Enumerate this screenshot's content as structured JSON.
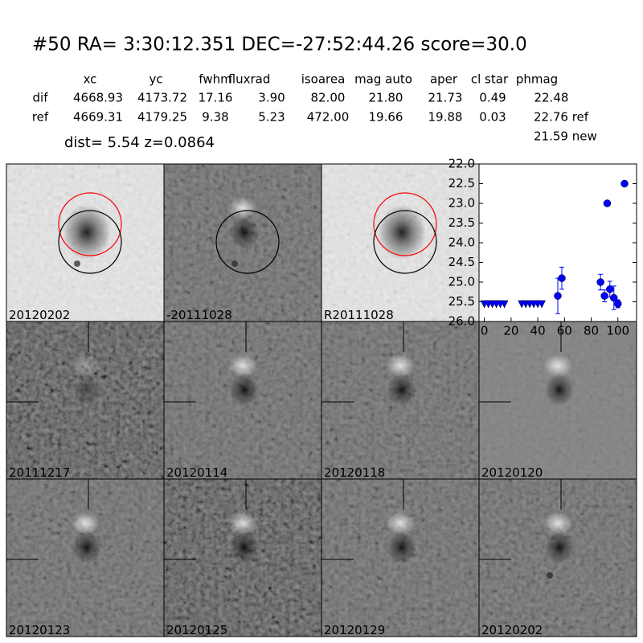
{
  "header": {
    "title": "#50   RA= 3:30:12.351 DEC=-27:52:44.26       score=30.0",
    "dist_line": "dist=  5.54      z=0.0864"
  },
  "table": {
    "columns": [
      "xc",
      "yc",
      "fwhm",
      "fluxrad",
      "isoarea",
      "mag auto",
      "aper",
      "cl star",
      "phmag"
    ],
    "rows": [
      [
        "dif",
        "4668.93",
        "4173.72",
        "17.16",
        "3.90",
        "82.00",
        "21.80",
        "21.73",
        "0.49",
        "22.48"
      ],
      [
        "ref",
        "4669.31",
        "4179.25",
        "9.38",
        "5.23",
        "472.00",
        "19.66",
        "19.88",
        "0.03",
        "22.76 ref"
      ]
    ],
    "extra": "21.59 new"
  },
  "panels": [
    {
      "label": "20120202",
      "circles": [
        "#ff0000",
        "#000000"
      ]
    },
    {
      "label": "-20111028",
      "circles": [
        "#000000"
      ]
    },
    {
      "label": "R20111028",
      "circles": [
        "#ff0000",
        "#000000"
      ]
    },
    {
      "label": "20111217"
    },
    {
      "label": "20120114"
    },
    {
      "label": "20120118"
    },
    {
      "label": "20120120"
    },
    {
      "label": "20120123"
    },
    {
      "label": "20120125"
    },
    {
      "label": "20120129"
    },
    {
      "label": "20120202",
      "label_color": "#ff0000"
    }
  ],
  "chart_data": {
    "type": "scatter",
    "xlim": [
      -4,
      114
    ],
    "ylim": [
      26.0,
      22.0
    ],
    "xticks": [
      0,
      20,
      40,
      60,
      80,
      100
    ],
    "yticks": [
      {
        "value": 22,
        "label": "22.0"
      },
      22.5,
      {
        "value": 23,
        "label": "23.0"
      },
      23.5,
      {
        "value": 24,
        "label": "24.0"
      },
      24.5,
      {
        "value": 25,
        "label": "25.0"
      },
      25.5,
      {
        "value": 26,
        "label": "26.0"
      }
    ],
    "series": [
      {
        "marker": "triangle",
        "color": "#0000ff",
        "x": [
          0,
          3,
          6,
          9,
          12,
          15,
          28,
          31,
          34,
          37,
          40,
          43
        ],
        "values": [
          25.55,
          25.55,
          25.55,
          25.55,
          25.55,
          25.55,
          25.55,
          25.55,
          25.55,
          25.55,
          25.55,
          25.55
        ]
      },
      {
        "marker": "circle",
        "color": "#0000ff",
        "x": [
          55,
          58,
          87,
          90,
          92,
          94,
          97,
          100,
          105
        ],
        "values": [
          25.35,
          24.9,
          25.0,
          25.35,
          23.0,
          25.18,
          25.4,
          25.55,
          22.5
        ],
        "errors": [
          0.45,
          0.28,
          0.2,
          0.15,
          0.03,
          0.2,
          0.3,
          0.1,
          0.03
        ]
      }
    ]
  }
}
